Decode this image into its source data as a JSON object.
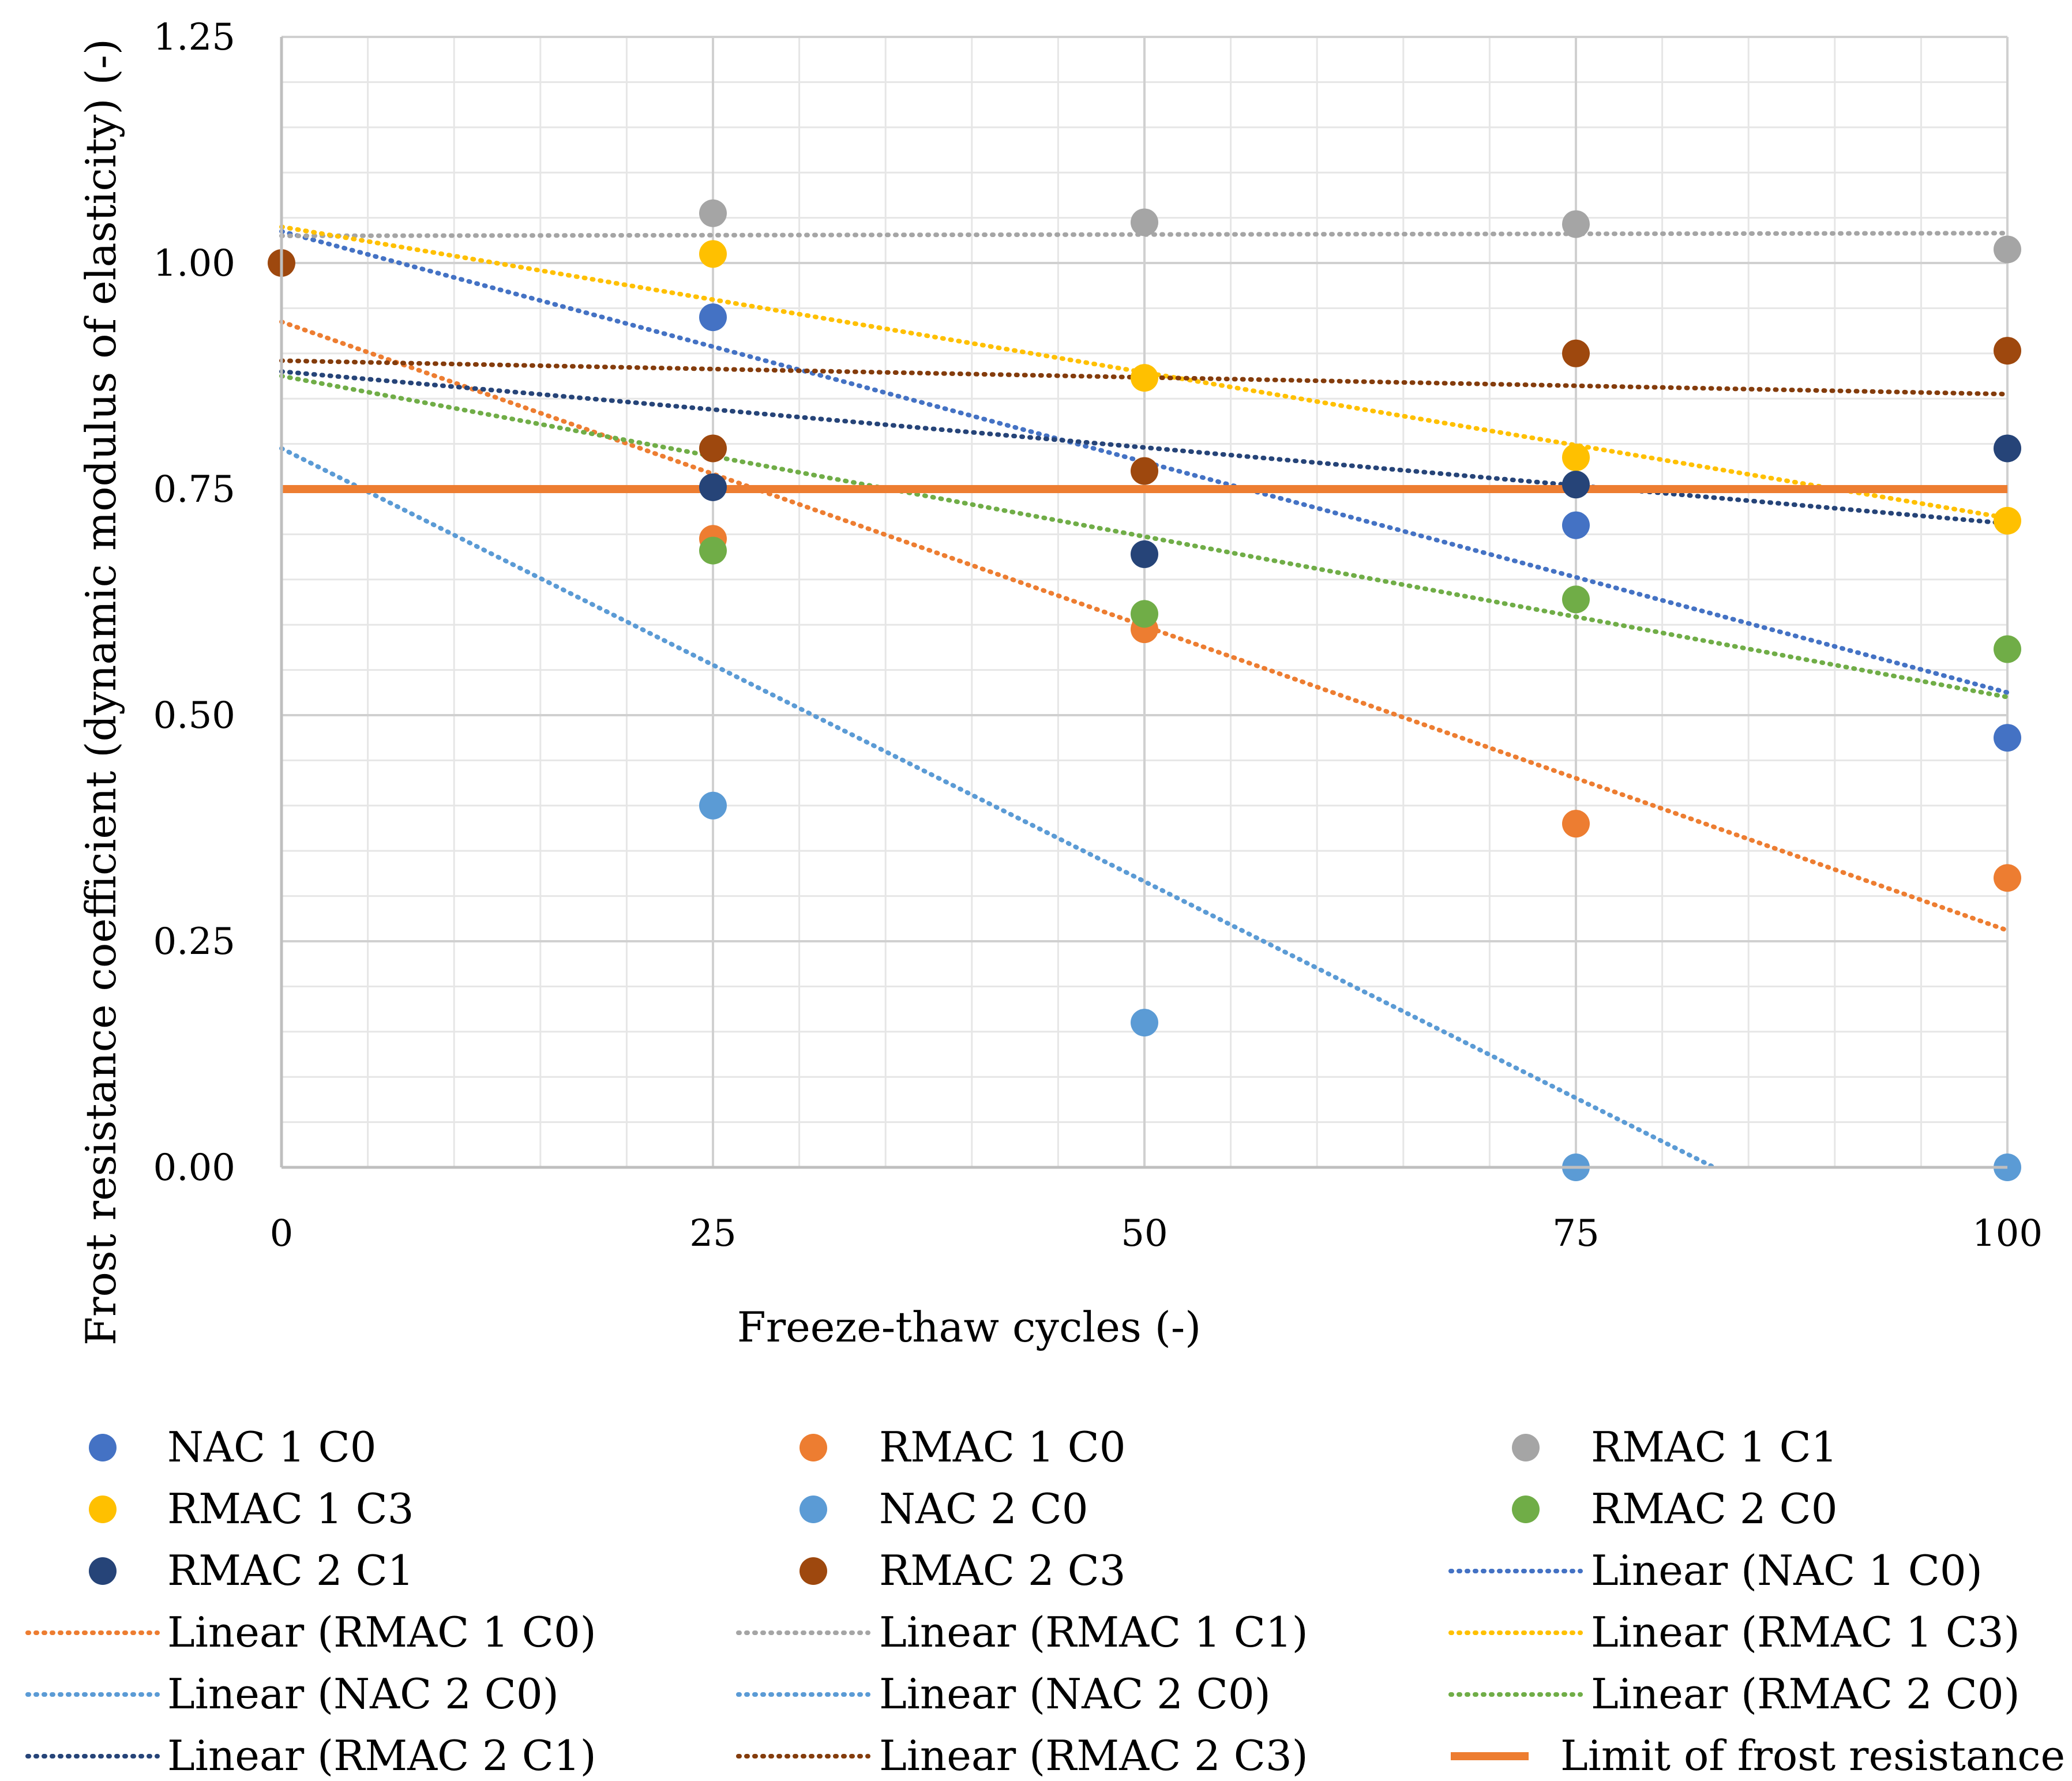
{
  "chart_data": {
    "type": "scatter",
    "title": "",
    "xlabel": "Freeze-thaw cycles (-)",
    "ylabel": "Frost resistance coefficient (dynamic modulus of elasticity) (-)",
    "xlim": [
      0,
      100
    ],
    "ylim": [
      0,
      1.25
    ],
    "x_ticks": [
      "0",
      "25",
      "50",
      "75",
      "100"
    ],
    "y_ticks": [
      "0.00",
      "0.25",
      "0.50",
      "0.75",
      "1.00",
      "1.25"
    ],
    "grid": true,
    "legend_position": "bottom",
    "series": [
      {
        "name": "NAC 1 C0",
        "color": "#4472C4",
        "x": [
          25,
          75,
          100
        ],
        "y": [
          0.94,
          0.71,
          0.475
        ]
      },
      {
        "name": "RMAC 1 C0",
        "color": "#ED7D31",
        "x": [
          25,
          50,
          75,
          100
        ],
        "y": [
          0.695,
          0.595,
          0.38,
          0.32
        ]
      },
      {
        "name": "RMAC 1 C1",
        "color": "#A5A5A5",
        "x": [
          25,
          50,
          75,
          100
        ],
        "y": [
          1.055,
          1.045,
          1.043,
          1.015
        ]
      },
      {
        "name": "RMAC 1 C3",
        "color": "#FFC000",
        "x": [
          25,
          50,
          75,
          100
        ],
        "y": [
          1.01,
          0.873,
          0.785,
          0.715
        ]
      },
      {
        "name": "NAC 2 C0",
        "color": "#5B9BD5",
        "x": [
          25,
          50,
          75,
          100
        ],
        "y": [
          0.4,
          0.16,
          0.0,
          0.0
        ]
      },
      {
        "name": "RMAC 2 C0",
        "color": "#70AD47",
        "x": [
          25,
          50,
          75,
          100
        ],
        "y": [
          0.682,
          0.612,
          0.628,
          0.573
        ]
      },
      {
        "name": "RMAC 2 C1",
        "color": "#264478",
        "x": [
          25,
          50,
          75,
          100
        ],
        "y": [
          0.752,
          0.678,
          0.755,
          0.795
        ]
      },
      {
        "name": "RMAC 2 C3",
        "color": "#9E480E",
        "x": [
          0,
          25,
          50,
          75,
          100
        ],
        "y": [
          1.0,
          0.795,
          0.77,
          0.9,
          0.903
        ]
      }
    ],
    "trendlines": [
      {
        "name": "Linear (NAC 1 C0)",
        "color": "#4472C4",
        "x": [
          0,
          100
        ],
        "y": [
          1.035,
          0.525
        ]
      },
      {
        "name": "Linear (RMAC 1 C0)",
        "color": "#ED7D31",
        "x": [
          0,
          100
        ],
        "y": [
          0.935,
          0.262
        ]
      },
      {
        "name": "Linear (RMAC 1 C1)",
        "color": "#A5A5A5",
        "x": [
          0,
          100
        ],
        "y": [
          1.03,
          1.033
        ]
      },
      {
        "name": "Linear (RMAC 1 C3)",
        "color": "#FFC000",
        "x": [
          0,
          100
        ],
        "y": [
          1.04,
          0.718
        ]
      },
      {
        "name": "Linear (NAC 2 C0)",
        "color": "#5B9BD5",
        "x": [
          0,
          83
        ],
        "y": [
          0.795,
          0.0
        ]
      },
      {
        "name": "Linear (NAC 2 C0)",
        "color": "#5B9BD5",
        "x": [
          0,
          83
        ],
        "y": [
          0.795,
          0.0
        ]
      },
      {
        "name": "Linear (RMAC 2 C0)",
        "color": "#70AD47",
        "x": [
          0,
          100
        ],
        "y": [
          0.875,
          0.52
        ]
      },
      {
        "name": "Linear (RMAC 2 C1)",
        "color": "#264478",
        "x": [
          0,
          100
        ],
        "y": [
          0.88,
          0.712
        ]
      },
      {
        "name": "Linear (RMAC 2 C3)",
        "color": "#843C0C",
        "x": [
          0,
          100
        ],
        "y": [
          0.892,
          0.855
        ]
      }
    ],
    "reference_line": {
      "name": "Limit of frost resistance",
      "color": "#ED7D31",
      "y": 0.75
    }
  }
}
